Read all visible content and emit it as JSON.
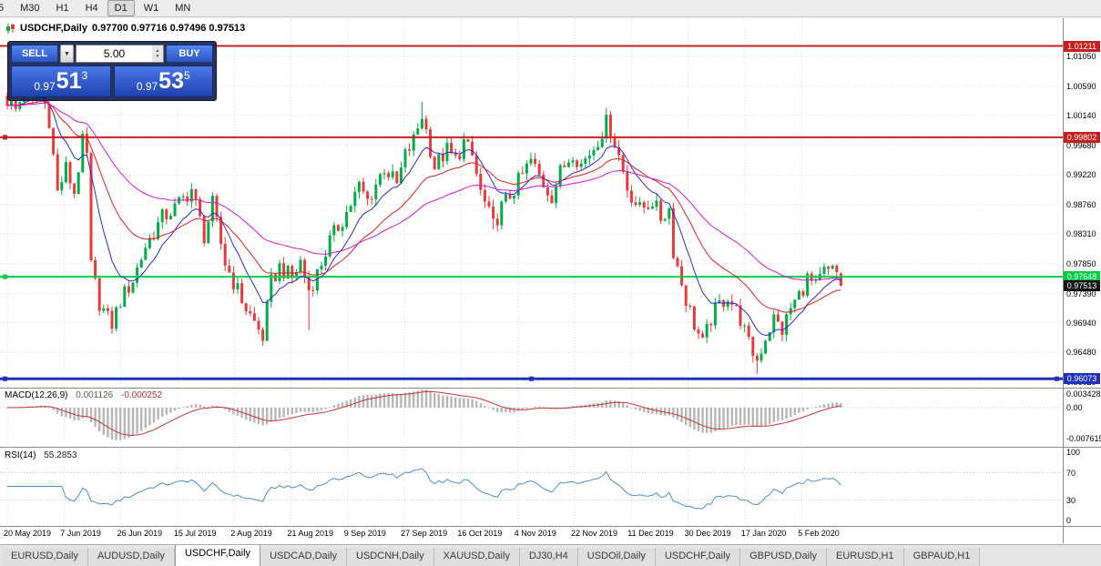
{
  "toolbar": {
    "buttons": [
      {
        "label": "5",
        "active": false
      },
      {
        "label": "M30",
        "active": false
      },
      {
        "label": "H1",
        "active": false
      },
      {
        "label": "H4",
        "active": false
      },
      {
        "label": "D1",
        "active": true
      },
      {
        "label": "W1",
        "active": false
      },
      {
        "label": "MN",
        "active": false
      }
    ]
  },
  "chart": {
    "title": "USDCHF,Daily",
    "ohlc": "0.97700 0.97716 0.97496 0.97513"
  },
  "one_click": {
    "sell_label": "SELL",
    "buy_label": "BUY",
    "volume": "5.00",
    "icons": {
      "dropdown": "▼",
      "spin_up": "▲",
      "spin_down": "▼"
    },
    "sell_price": {
      "prefix": "0.97",
      "big": "51",
      "sup": "3"
    },
    "buy_price": {
      "prefix": "0.97",
      "big": "53",
      "sup": "5"
    }
  },
  "tabs": [
    {
      "label": "EURUSD,Daily",
      "active": false
    },
    {
      "label": "AUDUSD,Daily",
      "active": false
    },
    {
      "label": "USDCHF,Daily",
      "active": true
    },
    {
      "label": "USDCAD,Daily",
      "active": false
    },
    {
      "label": "USDCNH,Daily",
      "active": false
    },
    {
      "label": "XAUUSD,Daily",
      "active": false
    },
    {
      "label": "DJ30,H4",
      "active": false
    },
    {
      "label": "USDOil,Daily",
      "active": false
    },
    {
      "label": "USDCHF,Daily",
      "active": false
    },
    {
      "label": "GBPUSD,Daily",
      "active": false
    },
    {
      "label": "EURUSD,H1",
      "active": false
    },
    {
      "label": "GBPAUD,H1",
      "active": false
    }
  ],
  "chart_data": {
    "type": "candlestick",
    "symbol": "USDCHF",
    "timeframe": "Daily",
    "last_candle": {
      "open": 0.977,
      "high": 0.97716,
      "low": 0.97496,
      "close": 0.97513
    },
    "num_candles": 200,
    "price_axis_ticks": [
      "1.01050",
      "1.00590",
      "1.00140",
      "0.99680",
      "0.99220",
      "0.98760",
      "0.98310",
      "0.97850",
      "0.97390",
      "0.96940",
      "0.96480",
      "0.96020"
    ],
    "horizontal_lines": [
      {
        "label": "1.01211",
        "value": 1.01211,
        "color": "#c81e1e",
        "width": 2,
        "handles": []
      },
      {
        "label": "0.99802",
        "value": 0.99802,
        "color": "#c81e1e",
        "width": 2,
        "handles": [
          "left"
        ]
      },
      {
        "label": "0.97648",
        "value": 0.97648,
        "color": "#00cc44",
        "width": 2,
        "handles": [
          "left"
        ]
      },
      {
        "label": "0.96073",
        "value": 0.96073,
        "color": "#2030b8",
        "width": 3,
        "handles": [
          "left",
          "center",
          "right"
        ]
      }
    ],
    "current_price": {
      "label": "0.97513",
      "value": 0.97513
    },
    "date_labels": [
      "20 May 2019",
      "7 Jun 2019",
      "26 Jun 2019",
      "15 Jul 2019",
      "2 Aug 2019",
      "21 Aug 2019",
      "9 Sep 2019",
      "27 Sep 2019",
      "16 Oct 2019",
      "4 Nov 2019",
      "22 Nov 2019",
      "11 Dec 2019",
      "30 Dec 2019",
      "17 Jan 2020",
      "5 Feb 2020"
    ],
    "price_anchors": [
      [
        0,
        1.0038
      ],
      [
        2,
        1.0022
      ],
      [
        4,
        1.005
      ],
      [
        6,
        1.0035
      ],
      [
        8,
        1.0055
      ],
      [
        10,
        1.0008
      ],
      [
        12,
        0.9895
      ],
      [
        14,
        0.9932
      ],
      [
        16,
        0.9895
      ],
      [
        18,
        0.9972
      ],
      [
        19,
        0.995
      ],
      [
        20,
        0.978
      ],
      [
        22,
        0.9725
      ],
      [
        24,
        0.97
      ],
      [
        25,
        0.9692
      ],
      [
        27,
        0.9728
      ],
      [
        30,
        0.976
      ],
      [
        33,
        0.9812
      ],
      [
        37,
        0.9856
      ],
      [
        40,
        0.987
      ],
      [
        44,
        0.99
      ],
      [
        47,
        0.9828
      ],
      [
        49,
        0.9876
      ],
      [
        52,
        0.9786
      ],
      [
        54,
        0.9757
      ],
      [
        57,
        0.9716
      ],
      [
        61,
        0.9672
      ],
      [
        63,
        0.9756
      ],
      [
        65,
        0.978
      ],
      [
        68,
        0.9762
      ],
      [
        70,
        0.9788
      ],
      [
        72,
        0.9745
      ],
      [
        74,
        0.977
      ],
      [
        77,
        0.982
      ],
      [
        81,
        0.9864
      ],
      [
        84,
        0.9904
      ],
      [
        86,
        0.9882
      ],
      [
        90,
        0.9934
      ],
      [
        93,
        0.9906
      ],
      [
        95,
        0.9952
      ],
      [
        97,
        0.9975
      ],
      [
        99,
        1.0015
      ],
      [
        100,
        0.999
      ],
      [
        102,
        0.9935
      ],
      [
        105,
        0.996
      ],
      [
        107,
        0.9945
      ],
      [
        109,
        0.9972
      ],
      [
        111,
        0.995
      ],
      [
        113,
        0.9895
      ],
      [
        116,
        0.9843
      ],
      [
        118,
        0.9872
      ],
      [
        121,
        0.99
      ],
      [
        125,
        0.9944
      ],
      [
        128,
        0.9908
      ],
      [
        130,
        0.989
      ],
      [
        132,
        0.9926
      ],
      [
        135,
        0.9958
      ],
      [
        137,
        0.9938
      ],
      [
        140,
        0.9965
      ],
      [
        143,
        1.0002
      ],
      [
        144,
        0.9994
      ],
      [
        146,
        0.9952
      ],
      [
        148,
        0.9902
      ],
      [
        151,
        0.9868
      ],
      [
        154,
        0.9882
      ],
      [
        156,
        0.9856
      ],
      [
        158,
        0.987
      ],
      [
        159,
        0.9806
      ],
      [
        162,
        0.973
      ],
      [
        164,
        0.9692
      ],
      [
        166,
        0.966
      ],
      [
        168,
        0.97
      ],
      [
        170,
        0.9722
      ],
      [
        172,
        0.9736
      ],
      [
        175,
        0.97
      ],
      [
        177,
        0.966
      ],
      [
        179,
        0.9636
      ],
      [
        181,
        0.9672
      ],
      [
        183,
        0.97
      ],
      [
        185,
        0.9682
      ],
      [
        187,
        0.9716
      ],
      [
        189,
        0.9736
      ],
      [
        191,
        0.9762
      ],
      [
        193,
        0.9748
      ],
      [
        195,
        0.9772
      ],
      [
        197,
        0.9782
      ],
      [
        198,
        0.9772
      ],
      [
        199,
        0.97513
      ]
    ],
    "wick_highs": [
      [
        8,
        1.0068
      ],
      [
        99,
        1.0035
      ],
      [
        109,
        0.9985
      ],
      [
        143,
        1.0022
      ]
    ],
    "wick_lows": [
      [
        25,
        0.969
      ],
      [
        61,
        0.9662
      ],
      [
        72,
        0.9682
      ],
      [
        116,
        0.9838
      ],
      [
        179,
        0.9615
      ]
    ],
    "moving_averages": [
      {
        "type": "EMA",
        "period": 10,
        "color": "#2b2bd4"
      },
      {
        "type": "EMA",
        "period": 24,
        "color": "#e02020"
      },
      {
        "type": "EMA",
        "period": 50,
        "color": "#d818d8"
      }
    ],
    "indicators": {
      "macd": {
        "label": "MACD(12,26,9)",
        "value": "0.001126",
        "signal_value": "-0.000252",
        "axis_ticks": [
          "0.003428",
          "0.00",
          "-0.007615"
        ],
        "hist_color": "#b6b6b6",
        "signal_color": "#cc3333",
        "range_max": 0.0045,
        "range_min": -0.0095
      },
      "rsi": {
        "label": "RSI(14)",
        "value": "55.2853",
        "axis_ticks": [
          "100",
          "70",
          "30",
          "0"
        ],
        "levels": [
          70,
          30
        ],
        "color": "#4a90c8"
      }
    },
    "candle_colors": {
      "up": "#00ad46",
      "down": "#e83a3a"
    }
  }
}
